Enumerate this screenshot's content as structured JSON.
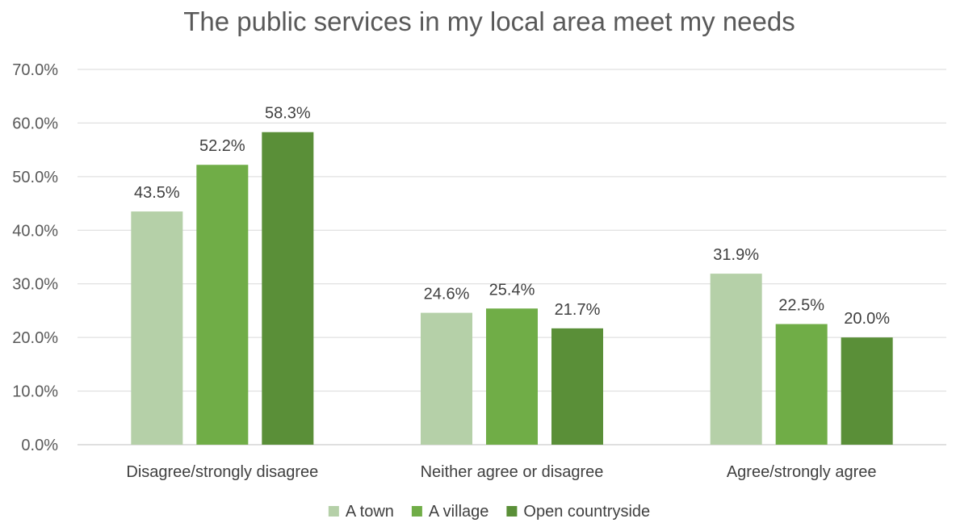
{
  "chart_data": {
    "type": "bar",
    "title": "The public services in my local area meet my needs",
    "categories": [
      "Disagree/strongly disagree",
      "Neither agree or disagree",
      "Agree/strongly agree"
    ],
    "series": [
      {
        "name": "A town",
        "color": "#b5d0a8",
        "values": [
          43.5,
          24.6,
          31.9
        ],
        "labels": [
          "43.5%",
          "24.6%",
          "31.9%"
        ]
      },
      {
        "name": "A village",
        "color": "#70ad47",
        "values": [
          52.2,
          25.4,
          22.5
        ],
        "labels": [
          "52.2%",
          "25.4%",
          "22.5%"
        ]
      },
      {
        "name": "Open countryside",
        "color": "#5a8f38",
        "values": [
          58.3,
          21.7,
          20.0
        ],
        "labels": [
          "58.3%",
          "21.7%",
          "20.0%"
        ]
      }
    ],
    "ylim": [
      0,
      70
    ],
    "yticks": [
      0,
      10,
      20,
      30,
      40,
      50,
      60,
      70
    ],
    "ytick_labels": [
      "0.0%",
      "10.0%",
      "20.0%",
      "30.0%",
      "40.0%",
      "50.0%",
      "60.0%",
      "70.0%"
    ],
    "xlabel": "",
    "ylabel": "",
    "grid": true,
    "legend_position": "bottom"
  }
}
